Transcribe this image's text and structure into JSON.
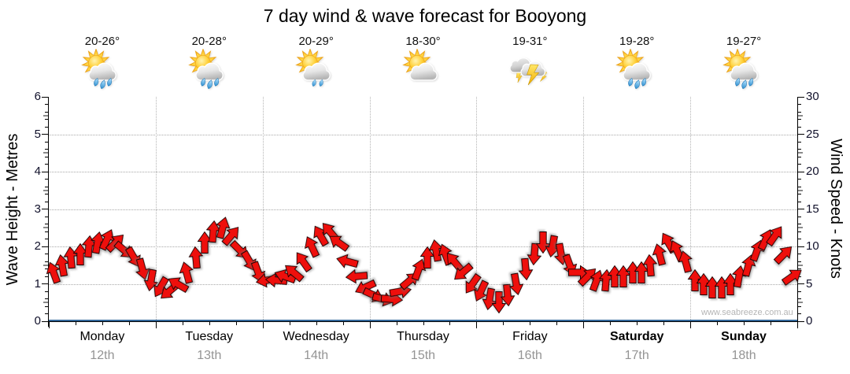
{
  "title": "7 day wind & wave forecast for Booyong",
  "watermark": "www.seabreeze.com.au",
  "left_axis": {
    "title": "Wave Height - Metres",
    "min": 0,
    "max": 6,
    "major_tick_labels": [
      "0",
      "1",
      "2",
      "3",
      "4",
      "5",
      "6"
    ]
  },
  "right_axis": {
    "title": "Wind Speed - Knots",
    "min": 0,
    "max": 30,
    "major_tick_labels": [
      "0",
      "5",
      "10",
      "15",
      "20",
      "25",
      "30"
    ]
  },
  "days": [
    {
      "name": "Monday",
      "date": "12th",
      "temp": "20-26°",
      "icon": "sun-cloud-rain",
      "bold": false
    },
    {
      "name": "Tuesday",
      "date": "13th",
      "temp": "20-28°",
      "icon": "sun-cloud-rain",
      "bold": false
    },
    {
      "name": "Wednesday",
      "date": "14th",
      "temp": "20-29°",
      "icon": "sun-cloud-light-rain",
      "bold": false
    },
    {
      "name": "Thursday",
      "date": "15th",
      "temp": "18-30°",
      "icon": "sun-cloud",
      "bold": false
    },
    {
      "name": "Friday",
      "date": "16th",
      "temp": "19-31°",
      "icon": "thunderstorm",
      "bold": false
    },
    {
      "name": "Saturday",
      "date": "17th",
      "temp": "19-28°",
      "icon": "sun-cloud-rain",
      "bold": true
    },
    {
      "name": "Sunday",
      "date": "18th",
      "temp": "19-27°",
      "icon": "sun-cloud-rain",
      "bold": true
    }
  ],
  "colors": {
    "arrow": "#ee0f0c",
    "arrow_outline": "#1b0000",
    "grid": "#a8a8a8",
    "wave_line": "#33689b",
    "date_text": "#949494",
    "watermark": "#b5b5b5"
  },
  "chart_data": {
    "type": "wind-arrows",
    "title": "7 day wind & wave forecast for Booyong",
    "x_categories": [
      "Monday 12th",
      "Tuesday 13th",
      "Wednesday 14th",
      "Thursday 15th",
      "Friday 16th",
      "Saturday 17th",
      "Sunday 18th"
    ],
    "sample_interval_hours": 2,
    "left_axis": {
      "label": "Wave Height - Metres",
      "range": [
        0,
        6
      ],
      "unit": "m",
      "gridlines_every": 1
    },
    "right_axis": {
      "label": "Wind Speed - Knots",
      "range": [
        0,
        30
      ],
      "unit": "kn",
      "gridlines_every": 5
    },
    "grid": {
      "horizontal_dotted": true,
      "vertical_dotted_at_day_boundaries": true
    },
    "legend": "none",
    "wave_height_m_flat_series": 0.05,
    "wind_dir_note": "dir_deg is the direction the arrow points, 0 = up (north), clockwise positive",
    "wind": [
      {
        "day": "Monday",
        "knots": [
          6.5,
          7.5,
          8.5,
          9.0,
          10.0,
          10.5,
          11.0,
          10.5,
          9.5,
          8.5,
          7.0,
          5.5
        ],
        "dir_deg": [
          -20,
          -10,
          -5,
          0,
          5,
          10,
          25,
          45,
          130,
          150,
          165,
          -170
        ]
      },
      {
        "day": "Tuesday",
        "knots": [
          4.5,
          4.0,
          5.0,
          6.5,
          8.5,
          10.5,
          12.0,
          12.5,
          11.5,
          9.5,
          8.0,
          6.5
        ],
        "dir_deg": [
          -150,
          -130,
          -60,
          -15,
          -5,
          0,
          5,
          15,
          40,
          135,
          150,
          160
        ]
      },
      {
        "day": "Wednesday",
        "knots": [
          5.5,
          5.5,
          6.0,
          6.5,
          8.0,
          10.0,
          11.5,
          12.0,
          10.5,
          8.0,
          6.0,
          4.5
        ],
        "dir_deg": [
          -100,
          -85,
          -70,
          -50,
          -35,
          -25,
          -30,
          -40,
          -55,
          -75,
          -95,
          -115
        ]
      },
      {
        "day": "Thursday",
        "knots": [
          3.5,
          3.0,
          3.0,
          4.0,
          5.5,
          7.0,
          8.5,
          9.5,
          9.0,
          8.0,
          6.5,
          5.0
        ],
        "dir_deg": [
          115,
          105,
          95,
          80,
          50,
          20,
          0,
          -10,
          -20,
          -40,
          -130,
          -145
        ]
      },
      {
        "day": "Friday",
        "knots": [
          4.0,
          3.0,
          2.5,
          3.5,
          5.0,
          7.0,
          9.0,
          10.5,
          10.0,
          9.0,
          7.5,
          6.5
        ],
        "dir_deg": [
          -155,
          -170,
          180,
          175,
          170,
          175,
          185,
          180,
          190,
          170,
          160,
          90
        ]
      },
      {
        "day": "Saturday",
        "knots": [
          6.0,
          5.5,
          5.5,
          6.0,
          6.0,
          6.5,
          6.5,
          7.5,
          9.0,
          10.5,
          9.5,
          8.0
        ],
        "dir_deg": [
          45,
          20,
          5,
          0,
          0,
          0,
          0,
          -5,
          -15,
          -30,
          -25,
          -15
        ]
      },
      {
        "day": "Sunday",
        "knots": [
          5.5,
          5.0,
          4.5,
          4.5,
          5.0,
          6.0,
          7.5,
          9.5,
          11.0,
          11.5,
          9.0,
          6.0
        ],
        "dir_deg": [
          0,
          0,
          0,
          0,
          0,
          10,
          15,
          20,
          25,
          35,
          45,
          55
        ]
      }
    ]
  }
}
